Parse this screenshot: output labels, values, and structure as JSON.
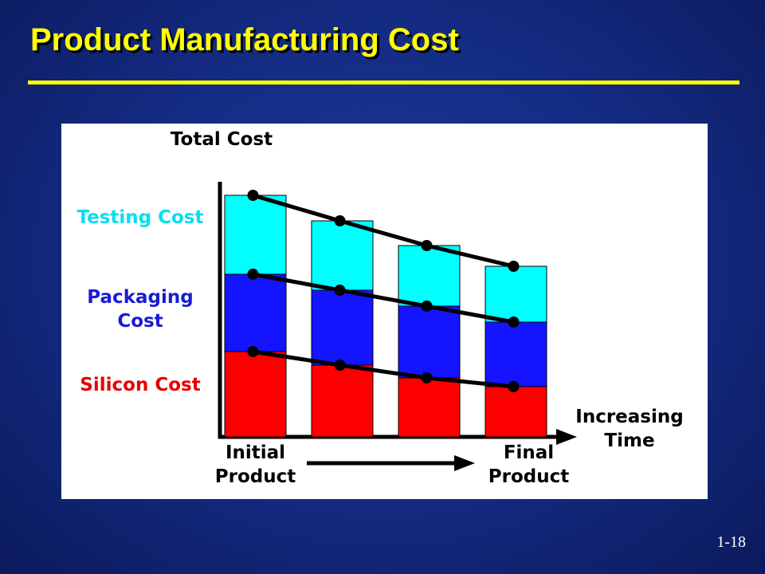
{
  "chart_data": {
    "type": "stacked_bar",
    "title": "Product Manufacturing Cost",
    "y_label": "Total Cost",
    "x_label": "Increasing Time",
    "categories": [
      "Initial Product",
      null,
      null,
      "Final Product"
    ],
    "series": [
      {
        "name": "Silicon Cost",
        "color": "#ff0000",
        "label_color": "#e60000",
        "values": [
          10.7,
          9.0,
          7.4,
          6.3
        ]
      },
      {
        "name": "Packaging Cost",
        "color": "#1414ff",
        "label_color": "#1a1ad6",
        "values": [
          9.7,
          9.4,
          9.0,
          8.1
        ]
      },
      {
        "name": "Testing Cost",
        "color": "#00ffff",
        "label_color": "#00e0f0",
        "values": [
          9.9,
          8.7,
          7.6,
          7.0
        ]
      }
    ],
    "ylim": [
      0,
      32
    ]
  },
  "slide_number": "1-18"
}
